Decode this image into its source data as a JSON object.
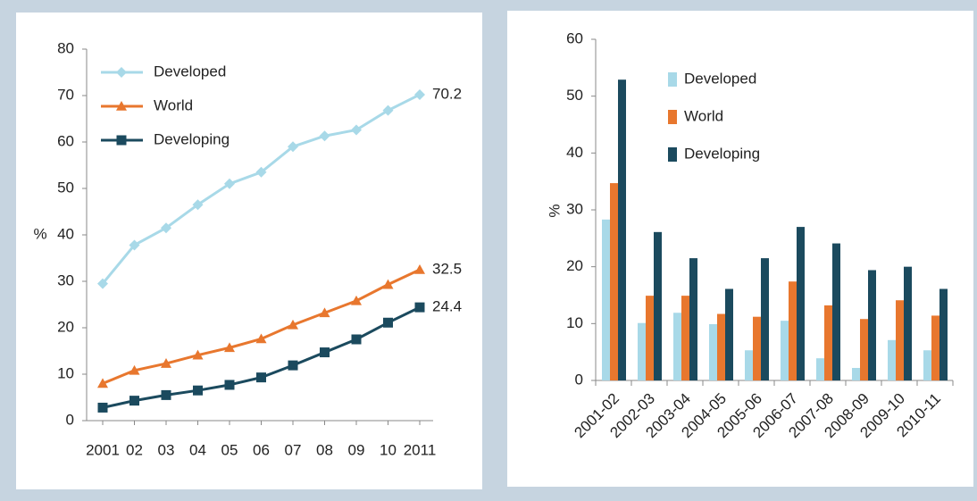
{
  "chart_data": [
    {
      "type": "line",
      "y_label": "%",
      "categories": [
        "2001",
        "02",
        "03",
        "04",
        "05",
        "06",
        "07",
        "08",
        "09",
        "10",
        "2011"
      ],
      "series": [
        {
          "name": "Developed",
          "color": "#a8d9e8",
          "marker": "diamond",
          "values": [
            29.5,
            37.8,
            41.5,
            46.5,
            51,
            53.5,
            59,
            61.3,
            62.6,
            66.8,
            70.2
          ]
        },
        {
          "name": "World",
          "color": "#e8772e",
          "marker": "triangle",
          "values": [
            8,
            10.8,
            12.3,
            14.1,
            15.7,
            17.6,
            20.6,
            23.2,
            25.8,
            29.3,
            32.5
          ]
        },
        {
          "name": "Developing",
          "color": "#1b4a5e",
          "marker": "square",
          "values": [
            2.8,
            4.3,
            5.5,
            6.5,
            7.7,
            9.3,
            11.9,
            14.7,
            17.5,
            21.1,
            24.4
          ]
        }
      ],
      "ylim": [
        0,
        80
      ],
      "yticks": [
        0,
        10,
        20,
        30,
        40,
        50,
        60,
        70,
        80
      ],
      "legend": "upper left"
    },
    {
      "type": "bar",
      "y_label": "%",
      "categories": [
        "2001-02",
        "2002-03",
        "2003-04",
        "2004-05",
        "2005-06",
        "2006-07",
        "2007-08",
        "2008-09",
        "2009-10",
        "2010-11"
      ],
      "series": [
        {
          "name": "Developed",
          "color": "#a8d9e8",
          "values": [
            28.3,
            10.1,
            11.9,
            9.9,
            5.3,
            10.5,
            3.9,
            2.2,
            7.1,
            5.3
          ]
        },
        {
          "name": "World",
          "color": "#e8772e",
          "values": [
            34.7,
            14.9,
            14.9,
            11.7,
            11.2,
            17.4,
            13.2,
            10.8,
            14.1,
            11.4
          ]
        },
        {
          "name": "Developing",
          "color": "#1b4a5e",
          "values": [
            52.9,
            26.1,
            21.5,
            16.1,
            21.5,
            27.0,
            24.1,
            19.4,
            20.0,
            16.1
          ]
        }
      ],
      "ylim": [
        0,
        60
      ],
      "yticks": [
        0,
        10,
        20,
        30,
        40,
        50,
        60
      ],
      "legend": "upper center"
    }
  ]
}
